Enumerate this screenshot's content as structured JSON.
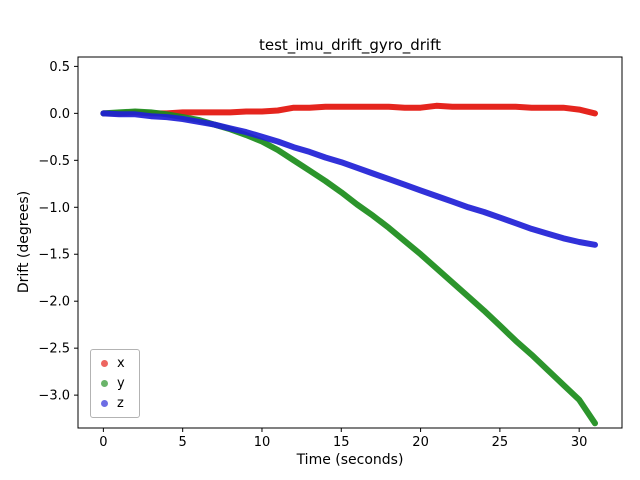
{
  "chart_data": {
    "type": "scatter",
    "title": "test_imu_drift_gyro_drift",
    "xlabel": "Time (seconds)",
    "ylabel": "Drift (degrees)",
    "xlim": [
      -1.6,
      32.7
    ],
    "ylim": [
      -3.35,
      0.6
    ],
    "xticks": [
      0,
      5,
      10,
      15,
      20,
      25,
      30
    ],
    "yticks": [
      0.5,
      0.0,
      -0.5,
      -1.0,
      -1.5,
      -2.0,
      -2.5,
      -3.0
    ],
    "grid": false,
    "legend_position": "lower left",
    "x": [
      0,
      1,
      2,
      3,
      4,
      5,
      6,
      7,
      8,
      9,
      10,
      11,
      12,
      13,
      14,
      15,
      16,
      17,
      18,
      19,
      20,
      21,
      22,
      23,
      24,
      25,
      26,
      27,
      28,
      29,
      30,
      31
    ],
    "series": [
      {
        "name": "x",
        "color": "#e3120b",
        "values": [
          0.0,
          0.0,
          0.01,
          0.0,
          0.0,
          0.01,
          0.01,
          0.01,
          0.01,
          0.02,
          0.02,
          0.03,
          0.06,
          0.06,
          0.07,
          0.07,
          0.07,
          0.07,
          0.07,
          0.06,
          0.06,
          0.08,
          0.07,
          0.07,
          0.07,
          0.07,
          0.07,
          0.06,
          0.06,
          0.06,
          0.04,
          0.0
        ]
      },
      {
        "name": "y",
        "color": "#1a8c1a",
        "values": [
          0.0,
          0.01,
          0.02,
          0.01,
          -0.01,
          -0.04,
          -0.07,
          -0.12,
          -0.17,
          -0.23,
          -0.3,
          -0.39,
          -0.5,
          -0.61,
          -0.72,
          -0.84,
          -0.97,
          -1.09,
          -1.22,
          -1.36,
          -1.5,
          -1.65,
          -1.8,
          -1.95,
          -2.1,
          -2.26,
          -2.42,
          -2.57,
          -2.73,
          -2.89,
          -3.05,
          -3.3
        ]
      },
      {
        "name": "z",
        "color": "#1f1fd6",
        "values": [
          0.0,
          -0.01,
          -0.01,
          -0.03,
          -0.04,
          -0.06,
          -0.09,
          -0.12,
          -0.16,
          -0.2,
          -0.25,
          -0.3,
          -0.36,
          -0.41,
          -0.47,
          -0.52,
          -0.58,
          -0.64,
          -0.7,
          -0.76,
          -0.82,
          -0.88,
          -0.94,
          -1.0,
          -1.05,
          -1.11,
          -1.17,
          -1.23,
          -1.28,
          -1.33,
          -1.37,
          -1.4
        ]
      }
    ]
  }
}
